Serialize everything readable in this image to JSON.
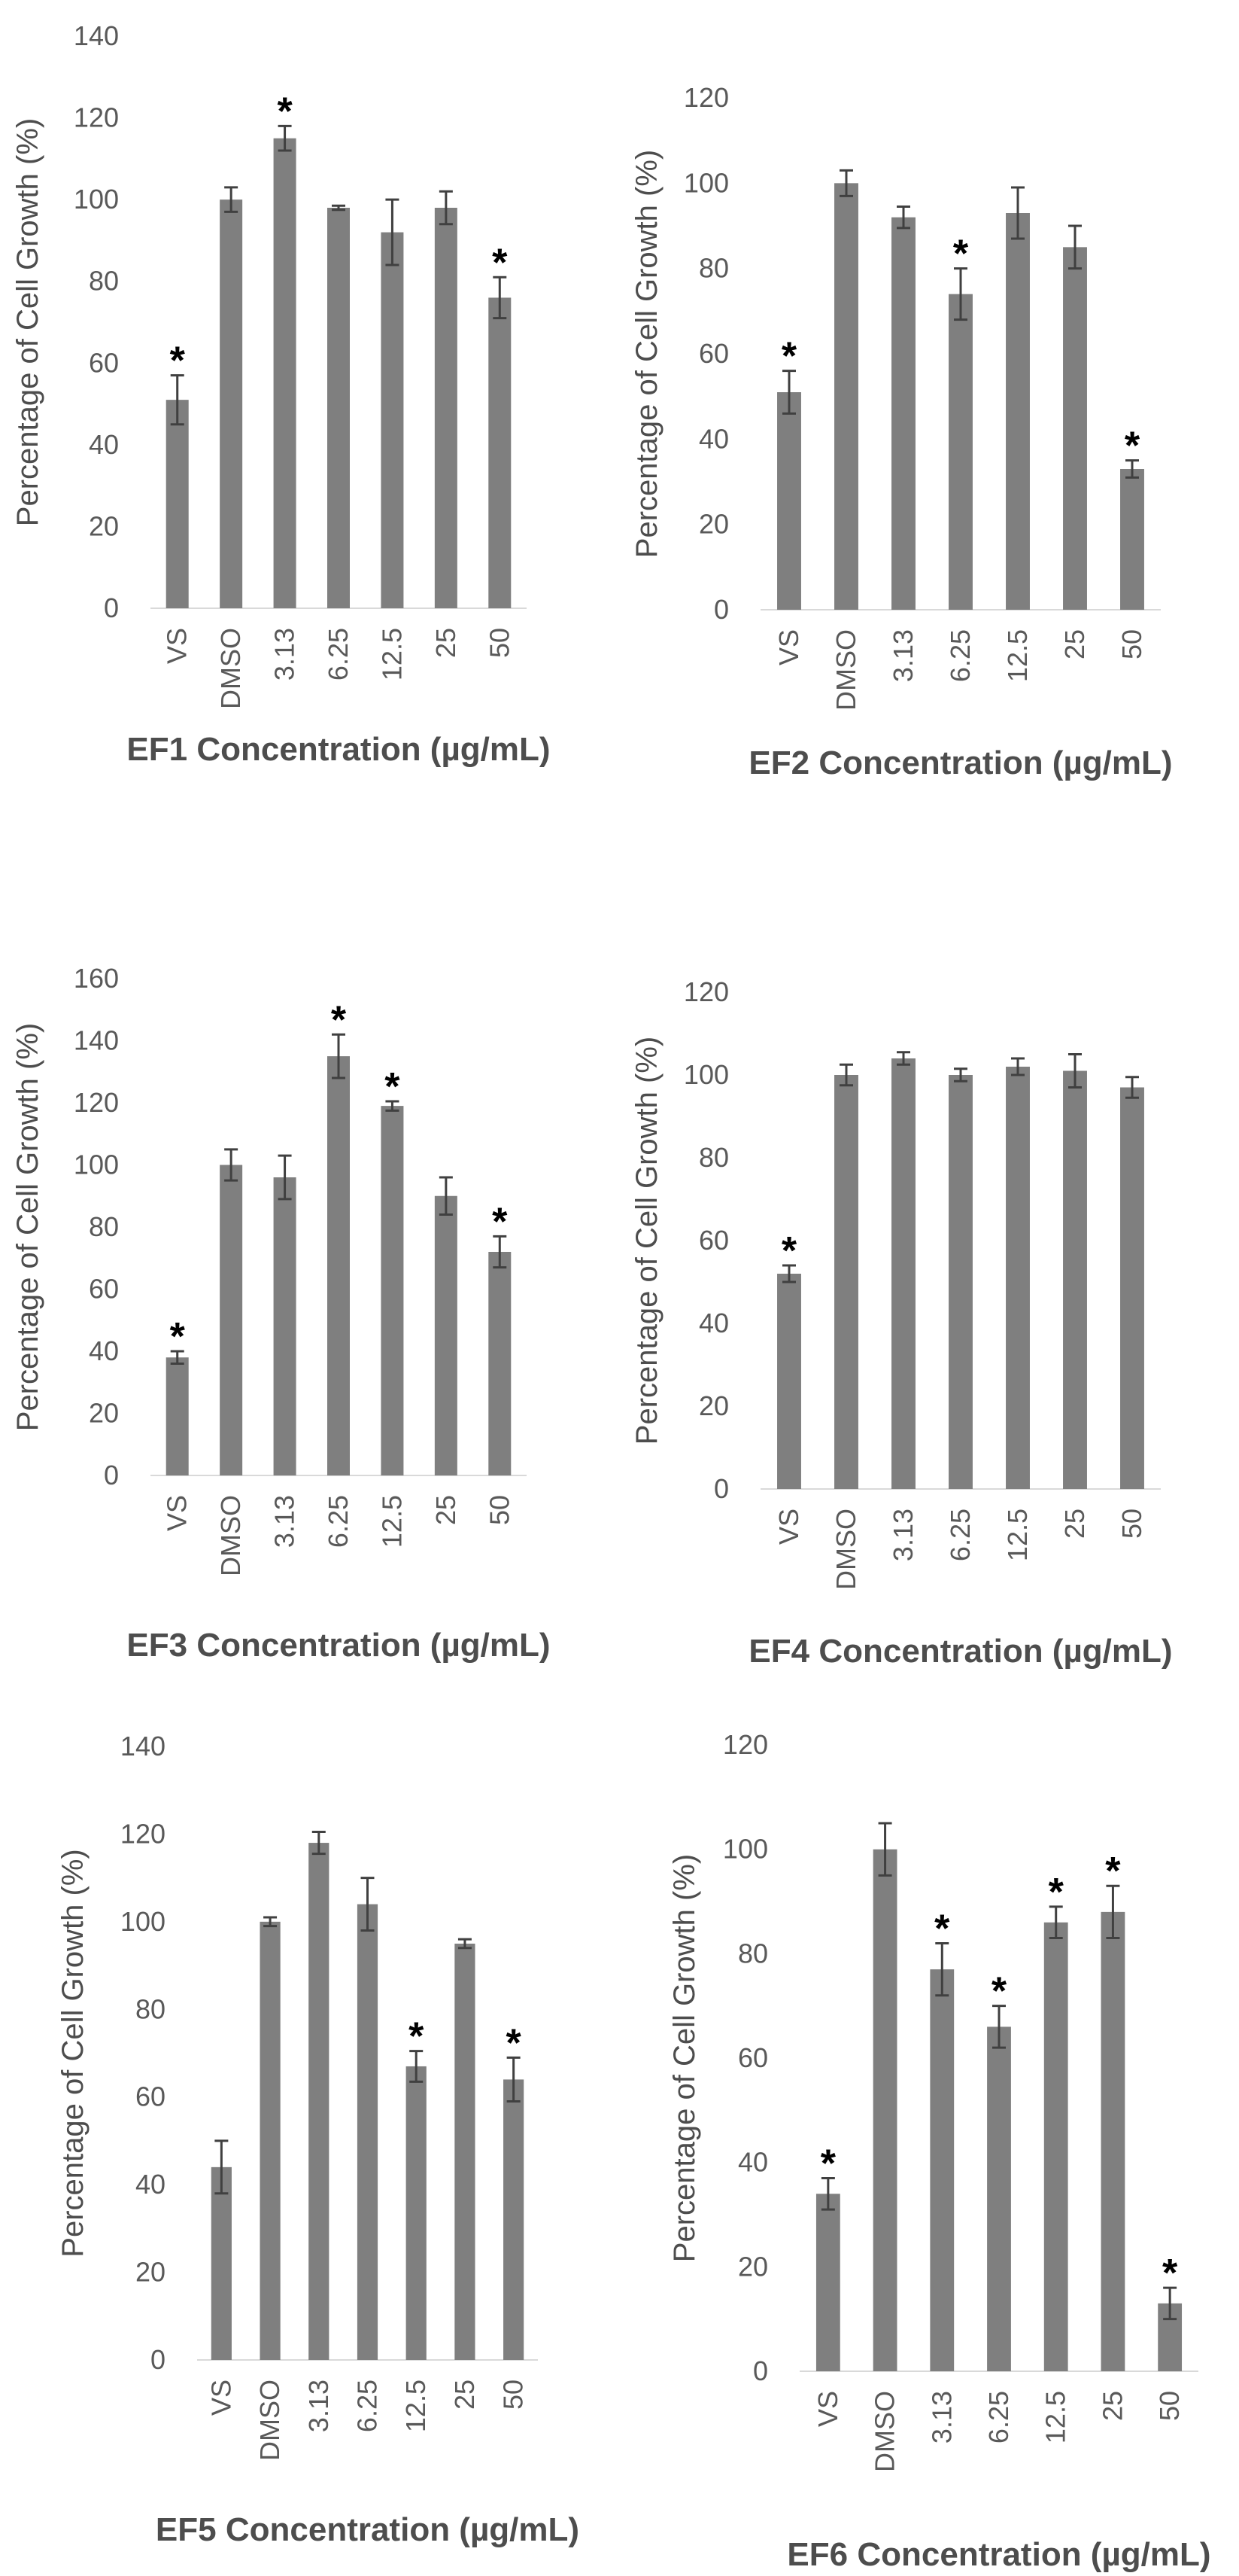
{
  "chart_data": [
    {
      "type": "bar",
      "title": "",
      "xlabel": "EF1 Concentration (µg/mL)",
      "ylabel": "Percentage of Cell Growth (%)",
      "categories": [
        "VS",
        "DMSO",
        "3.13",
        "6.25",
        "12.5",
        "25",
        "50"
      ],
      "values": [
        51,
        100,
        115,
        98,
        92,
        98,
        76
      ],
      "errors": [
        6,
        3,
        3,
        0.5,
        8,
        4,
        5
      ],
      "significant": [
        true,
        false,
        true,
        false,
        false,
        false,
        true
      ],
      "significance_marker": "*",
      "ylim": [
        0,
        140
      ],
      "yticks": [
        "0",
        "20",
        "40",
        "60",
        "80",
        "100",
        "120",
        "140"
      ],
      "bar_color": "#7f7f7f"
    },
    {
      "type": "bar",
      "title": "",
      "xlabel": "EF2 Concentration (µg/mL)",
      "ylabel": "Percentage of Cell Growth (%)",
      "categories": [
        "VS",
        "DMSO",
        "3.13",
        "6.25",
        "12.5",
        "25",
        "50"
      ],
      "values": [
        51,
        100,
        92,
        74,
        93,
        85,
        33
      ],
      "errors": [
        5,
        3,
        2.5,
        6,
        6,
        5,
        2
      ],
      "significant": [
        true,
        false,
        false,
        true,
        false,
        false,
        true
      ],
      "significance_marker": "*",
      "ylim": [
        0,
        120
      ],
      "yticks": [
        "0",
        "20",
        "40",
        "60",
        "80",
        "100",
        "120"
      ],
      "bar_color": "#7f7f7f"
    },
    {
      "type": "bar",
      "title": "",
      "xlabel": "EF3 Concentration (µg/mL)",
      "ylabel": "Percentage of Cell Growth (%)",
      "categories": [
        "VS",
        "DMSO",
        "3.13",
        "6.25",
        "12.5",
        "25",
        "50"
      ],
      "values": [
        38,
        100,
        96,
        135,
        119,
        90,
        72
      ],
      "errors": [
        2,
        5,
        7,
        7,
        1.5,
        6,
        5
      ],
      "significant": [
        true,
        false,
        false,
        true,
        true,
        false,
        true
      ],
      "significance_marker": "*",
      "ylim": [
        0,
        160
      ],
      "yticks": [
        "0",
        "20",
        "40",
        "60",
        "80",
        "100",
        "120",
        "140",
        "160"
      ],
      "bar_color": "#7f7f7f"
    },
    {
      "type": "bar",
      "title": "",
      "xlabel": "EF4 Concentration (µg/mL)",
      "ylabel": "Percentage of Cell Growth (%)",
      "categories": [
        "VS",
        "DMSO",
        "3.13",
        "6.25",
        "12.5",
        "25",
        "50"
      ],
      "values": [
        52,
        100,
        104,
        100,
        102,
        101,
        97
      ],
      "errors": [
        2,
        2.5,
        1.5,
        1.5,
        2,
        4,
        2.5
      ],
      "significant": [
        true,
        false,
        false,
        false,
        false,
        false,
        false
      ],
      "significance_marker": "*",
      "ylim": [
        0,
        120
      ],
      "yticks": [
        "0",
        "20",
        "40",
        "60",
        "80",
        "100",
        "120"
      ],
      "bar_color": "#7f7f7f"
    },
    {
      "type": "bar",
      "title": "",
      "xlabel": "EF5 Concentration (µg/mL)",
      "ylabel": "Percentage of Cell Growth (%)",
      "categories": [
        "VS",
        "DMSO",
        "3.13",
        "6.25",
        "12.5",
        "25",
        "50"
      ],
      "values": [
        44,
        100,
        118,
        104,
        67,
        95,
        64
      ],
      "errors": [
        6,
        1,
        2.5,
        6,
        3.5,
        1,
        5
      ],
      "significant": [
        false,
        false,
        false,
        false,
        true,
        false,
        true
      ],
      "significance_marker": "*",
      "ylim": [
        0,
        140
      ],
      "yticks": [
        "0",
        "20",
        "40",
        "60",
        "80",
        "100",
        "120",
        "140"
      ],
      "bar_color": "#7f7f7f"
    },
    {
      "type": "bar",
      "title": "",
      "xlabel": "EF6 Concentration (µg/mL)",
      "ylabel": "Percentage of Cell Growth (%)",
      "categories": [
        "VS",
        "DMSO",
        "3.13",
        "6.25",
        "12.5",
        "25",
        "50"
      ],
      "values": [
        34,
        100,
        77,
        66,
        86,
        88,
        13
      ],
      "errors": [
        3,
        5,
        5,
        4,
        3,
        5,
        3
      ],
      "significant": [
        true,
        false,
        true,
        true,
        true,
        true,
        true
      ],
      "significance_marker": "*",
      "ylim": [
        0,
        120
      ],
      "yticks": [
        "0",
        "20",
        "40",
        "60",
        "80",
        "100",
        "120"
      ],
      "bar_color": "#7f7f7f"
    }
  ]
}
